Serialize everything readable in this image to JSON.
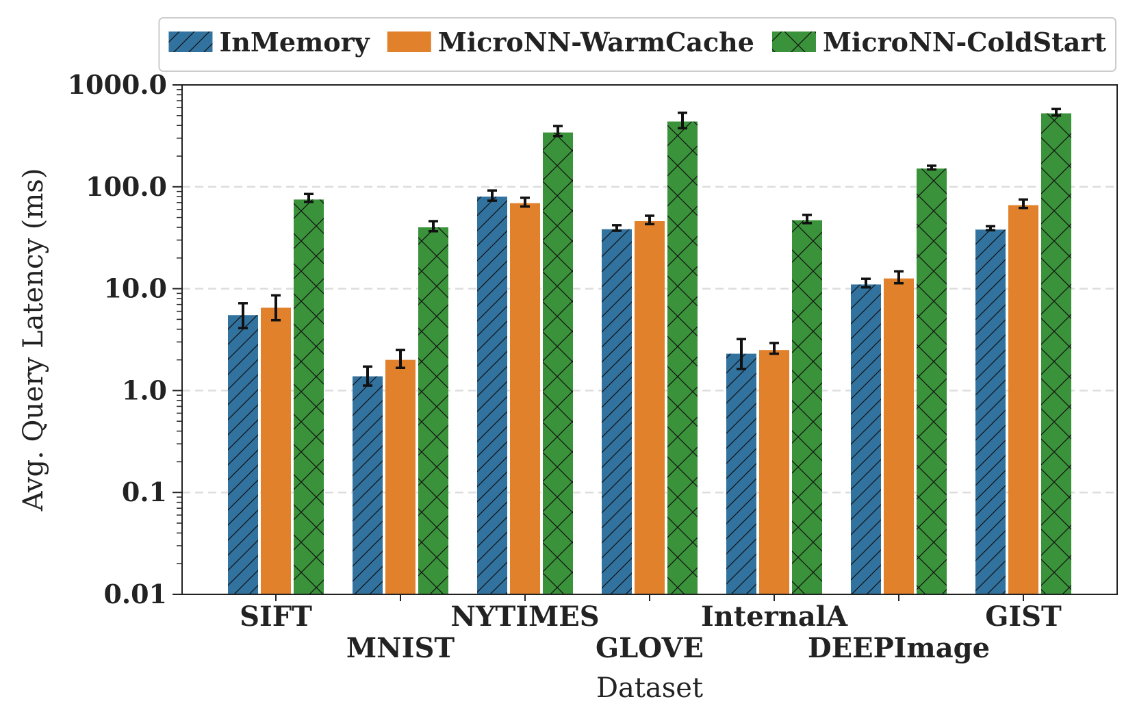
{
  "chart_data": {
    "type": "bar",
    "xlabel": "Dataset",
    "ylabel": "Avg. Query Latency (ms)",
    "yscale": "log",
    "ylim": [
      0.01,
      1000
    ],
    "yticks": [
      "0.01",
      "0.1",
      "1.0",
      "10.0",
      "100.0",
      "1000.0"
    ],
    "grid": "y dashed",
    "legend_position": "top",
    "categories": [
      "SIFT",
      "MNIST",
      "NYTIMES",
      "GLOVE",
      "InternalA",
      "DEEPImage",
      "GIST"
    ],
    "series": [
      {
        "name": "InMemory",
        "color": "#31729f",
        "hatch": "/",
        "values": [
          5.5,
          1.38,
          80,
          38.3,
          2.3,
          11,
          38
        ],
        "err_low": [
          4.1,
          1.12,
          73,
          37,
          1.63,
          10.3,
          37.5
        ],
        "err_high": [
          7.2,
          1.72,
          92,
          42,
          3.2,
          12.5,
          41
        ]
      },
      {
        "name": "MicroNN-WarmCache",
        "color": "#e1812c",
        "hatch": "",
        "values": [
          6.5,
          2.0,
          69,
          46,
          2.5,
          12.6,
          66
        ],
        "err_low": [
          4.9,
          1.67,
          64,
          43,
          2.3,
          11.3,
          62
        ],
        "err_high": [
          8.6,
          2.5,
          78,
          52,
          2.93,
          14.8,
          75
        ]
      },
      {
        "name": "MicroNN-ColdStart",
        "color": "#3a923a",
        "hatch": "x",
        "values": [
          75,
          40,
          341,
          437,
          47,
          151,
          526
        ],
        "err_low": [
          71,
          36.6,
          315,
          376,
          44,
          148,
          500
        ],
        "err_high": [
          85,
          46,
          395,
          533,
          53,
          161,
          580
        ]
      }
    ]
  }
}
